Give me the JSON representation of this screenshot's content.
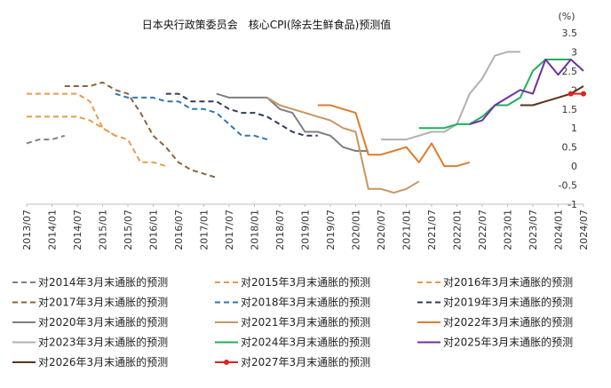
{
  "chart_data": {
    "type": "line",
    "title": "日本央行政策委员会　核心CPI(除去生鲜食品)预测值",
    "xlabel": "",
    "ylabel": "(%)",
    "ylim": [
      -1,
      3.5
    ],
    "yticks": [
      "-1",
      "-0.5",
      "0",
      "0.5",
      "1",
      "1.5",
      "2",
      "2.5",
      "3",
      "3.5"
    ],
    "xticks": [
      "2013/07",
      "2014/01",
      "2014/07",
      "2015/01",
      "2015/07",
      "2016/01",
      "2016/07",
      "2017/01",
      "2017/07",
      "2018/01",
      "2018/07",
      "2019/01",
      "2019/07",
      "2020/01",
      "2020/07",
      "2021/01",
      "2021/07",
      "2022/01",
      "2022/07",
      "2023/01",
      "2023/07",
      "2024/01",
      "2024/07"
    ],
    "grid": false,
    "legend_position": "bottom",
    "series": [
      {
        "name": "对2014年3月末通胀的预测",
        "color": "#7f7f7f",
        "dash": true,
        "points": [
          [
            "2013/07",
            0.6
          ],
          [
            "2013/10",
            0.7
          ],
          [
            "2014/01",
            0.7
          ],
          [
            "2014/04",
            0.8
          ]
        ]
      },
      {
        "name": "对2015年3月末通胀的预测",
        "color": "#e69b4c",
        "dash": true,
        "points": [
          [
            "2013/07",
            1.3
          ],
          [
            "2014/01",
            1.3
          ],
          [
            "2014/07",
            1.3
          ],
          [
            "2014/10",
            1.2
          ],
          [
            "2015/01",
            1.0
          ],
          [
            "2015/04",
            0.8
          ]
        ]
      },
      {
        "name": "对2016年3月末通胀的预测",
        "color": "#e69b4c",
        "dash": true,
        "points": [
          [
            "2013/07",
            1.9
          ],
          [
            "2014/01",
            1.9
          ],
          [
            "2014/07",
            1.9
          ],
          [
            "2014/10",
            1.7
          ],
          [
            "2015/01",
            1.0
          ],
          [
            "2015/04",
            0.8
          ],
          [
            "2015/07",
            0.7
          ],
          [
            "2015/10",
            0.1
          ],
          [
            "2016/01",
            0.1
          ],
          [
            "2016/04",
            0.0
          ]
        ]
      },
      {
        "name": "对2017年3月末通胀的预测",
        "color": "#8c6239",
        "dash": true,
        "points": [
          [
            "2014/04",
            2.1
          ],
          [
            "2014/07",
            2.1
          ],
          [
            "2014/10",
            2.1
          ],
          [
            "2015/01",
            2.2
          ],
          [
            "2015/04",
            2.0
          ],
          [
            "2015/07",
            1.9
          ],
          [
            "2015/10",
            1.4
          ],
          [
            "2016/01",
            0.8
          ],
          [
            "2016/04",
            0.5
          ],
          [
            "2016/07",
            0.1
          ],
          [
            "2016/10",
            -0.1
          ],
          [
            "2017/01",
            -0.2
          ],
          [
            "2017/04",
            -0.3
          ]
        ]
      },
      {
        "name": "对2018年3月末通胀的预测",
        "color": "#2e75b6",
        "dash": true,
        "points": [
          [
            "2015/04",
            1.9
          ],
          [
            "2015/07",
            1.8
          ],
          [
            "2015/10",
            1.8
          ],
          [
            "2016/01",
            1.8
          ],
          [
            "2016/04",
            1.7
          ],
          [
            "2016/07",
            1.7
          ],
          [
            "2016/10",
            1.5
          ],
          [
            "2017/01",
            1.5
          ],
          [
            "2017/04",
            1.4
          ],
          [
            "2017/07",
            1.1
          ],
          [
            "2017/10",
            0.8
          ],
          [
            "2018/01",
            0.8
          ],
          [
            "2018/04",
            0.7
          ]
        ]
      },
      {
        "name": "对2019年3月末通胀的预测",
        "color": "#2f3b5c",
        "dash": true,
        "points": [
          [
            "2016/04",
            1.9
          ],
          [
            "2016/07",
            1.9
          ],
          [
            "2016/10",
            1.7
          ],
          [
            "2017/01",
            1.7
          ],
          [
            "2017/04",
            1.7
          ],
          [
            "2017/07",
            1.5
          ],
          [
            "2017/10",
            1.4
          ],
          [
            "2018/01",
            1.4
          ],
          [
            "2018/04",
            1.3
          ],
          [
            "2018/07",
            1.1
          ],
          [
            "2018/10",
            0.9
          ],
          [
            "2019/01",
            0.8
          ],
          [
            "2019/04",
            0.8
          ]
        ]
      },
      {
        "name": "对2020年3月末通胀的预测",
        "color": "#7f7f7f",
        "dash": false,
        "points": [
          [
            "2017/04",
            1.9
          ],
          [
            "2017/07",
            1.8
          ],
          [
            "2017/10",
            1.8
          ],
          [
            "2018/01",
            1.8
          ],
          [
            "2018/04",
            1.8
          ],
          [
            "2018/07",
            1.5
          ],
          [
            "2018/10",
            1.4
          ],
          [
            "2019/01",
            0.9
          ],
          [
            "2019/04",
            0.9
          ],
          [
            "2019/07",
            0.8
          ],
          [
            "2019/10",
            0.5
          ],
          [
            "2020/01",
            0.4
          ],
          [
            "2020/04",
            0.4
          ]
        ]
      },
      {
        "name": "对2021年3月末通胀的预测",
        "color": "#c89660",
        "dash": false,
        "points": [
          [
            "2018/04",
            1.8
          ],
          [
            "2018/07",
            1.6
          ],
          [
            "2018/10",
            1.5
          ],
          [
            "2019/01",
            1.4
          ],
          [
            "2019/04",
            1.3
          ],
          [
            "2019/07",
            1.2
          ],
          [
            "2019/10",
            1.0
          ],
          [
            "2020/01",
            0.9
          ],
          [
            "2020/04",
            -0.6
          ],
          [
            "2020/07",
            -0.6
          ],
          [
            "2020/10",
            -0.7
          ],
          [
            "2021/01",
            -0.6
          ],
          [
            "2021/04",
            -0.4
          ]
        ]
      },
      {
        "name": "对2022年3月末通胀的预测",
        "color": "#e07c2c",
        "dash": false,
        "points": [
          [
            "2019/04",
            1.6
          ],
          [
            "2019/07",
            1.6
          ],
          [
            "2019/10",
            1.5
          ],
          [
            "2020/01",
            1.4
          ],
          [
            "2020/04",
            0.3
          ],
          [
            "2020/07",
            0.3
          ],
          [
            "2020/10",
            0.4
          ],
          [
            "2021/01",
            0.5
          ],
          [
            "2021/04",
            0.1
          ],
          [
            "2021/07",
            0.6
          ],
          [
            "2021/10",
            0.0
          ],
          [
            "2022/01",
            0.0
          ],
          [
            "2022/04",
            0.1
          ]
        ]
      },
      {
        "name": "对2023年3月末通胀的预测",
        "color": "#b0b0b0",
        "dash": false,
        "points": [
          [
            "2020/07",
            0.7
          ],
          [
            "2020/10",
            0.7
          ],
          [
            "2021/01",
            0.7
          ],
          [
            "2021/04",
            0.8
          ],
          [
            "2021/07",
            0.9
          ],
          [
            "2021/10",
            0.9
          ],
          [
            "2022/01",
            1.1
          ],
          [
            "2022/04",
            1.9
          ],
          [
            "2022/07",
            2.3
          ],
          [
            "2022/10",
            2.9
          ],
          [
            "2023/01",
            3.0
          ],
          [
            "2023/04",
            3.0
          ]
        ]
      },
      {
        "name": "对2024年3月末通胀的预测",
        "color": "#1fb05a",
        "dash": false,
        "points": [
          [
            "2021/04",
            1.0
          ],
          [
            "2021/07",
            1.0
          ],
          [
            "2021/10",
            1.0
          ],
          [
            "2022/01",
            1.1
          ],
          [
            "2022/04",
            1.1
          ],
          [
            "2022/07",
            1.3
          ],
          [
            "2022/10",
            1.6
          ],
          [
            "2023/01",
            1.6
          ],
          [
            "2023/04",
            1.8
          ],
          [
            "2023/07",
            2.5
          ],
          [
            "2023/10",
            2.8
          ],
          [
            "2024/01",
            2.8
          ],
          [
            "2024/04",
            2.8
          ]
        ]
      },
      {
        "name": "对2025年3月末通胀的预测",
        "color": "#7030a0",
        "dash": false,
        "points": [
          [
            "2022/04",
            1.1
          ],
          [
            "2022/07",
            1.2
          ],
          [
            "2022/10",
            1.6
          ],
          [
            "2023/01",
            1.8
          ],
          [
            "2023/04",
            2.0
          ],
          [
            "2023/07",
            1.9
          ],
          [
            "2023/10",
            2.8
          ],
          [
            "2024/01",
            2.4
          ],
          [
            "2024/04",
            2.8
          ],
          [
            "2024/07",
            2.5
          ]
        ]
      },
      {
        "name": "对2026年3月末通胀的预测",
        "color": "#5c3317",
        "dash": false,
        "points": [
          [
            "2023/04",
            1.6
          ],
          [
            "2023/07",
            1.6
          ],
          [
            "2023/10",
            1.7
          ],
          [
            "2024/01",
            1.8
          ],
          [
            "2024/04",
            1.9
          ],
          [
            "2024/07",
            2.1
          ]
        ]
      },
      {
        "name": "对2027年3月末通胀的预测",
        "color": "#e02020",
        "dash": false,
        "markers": true,
        "points": [
          [
            "2024/04",
            1.9
          ],
          [
            "2024/07",
            1.9
          ]
        ]
      }
    ]
  }
}
